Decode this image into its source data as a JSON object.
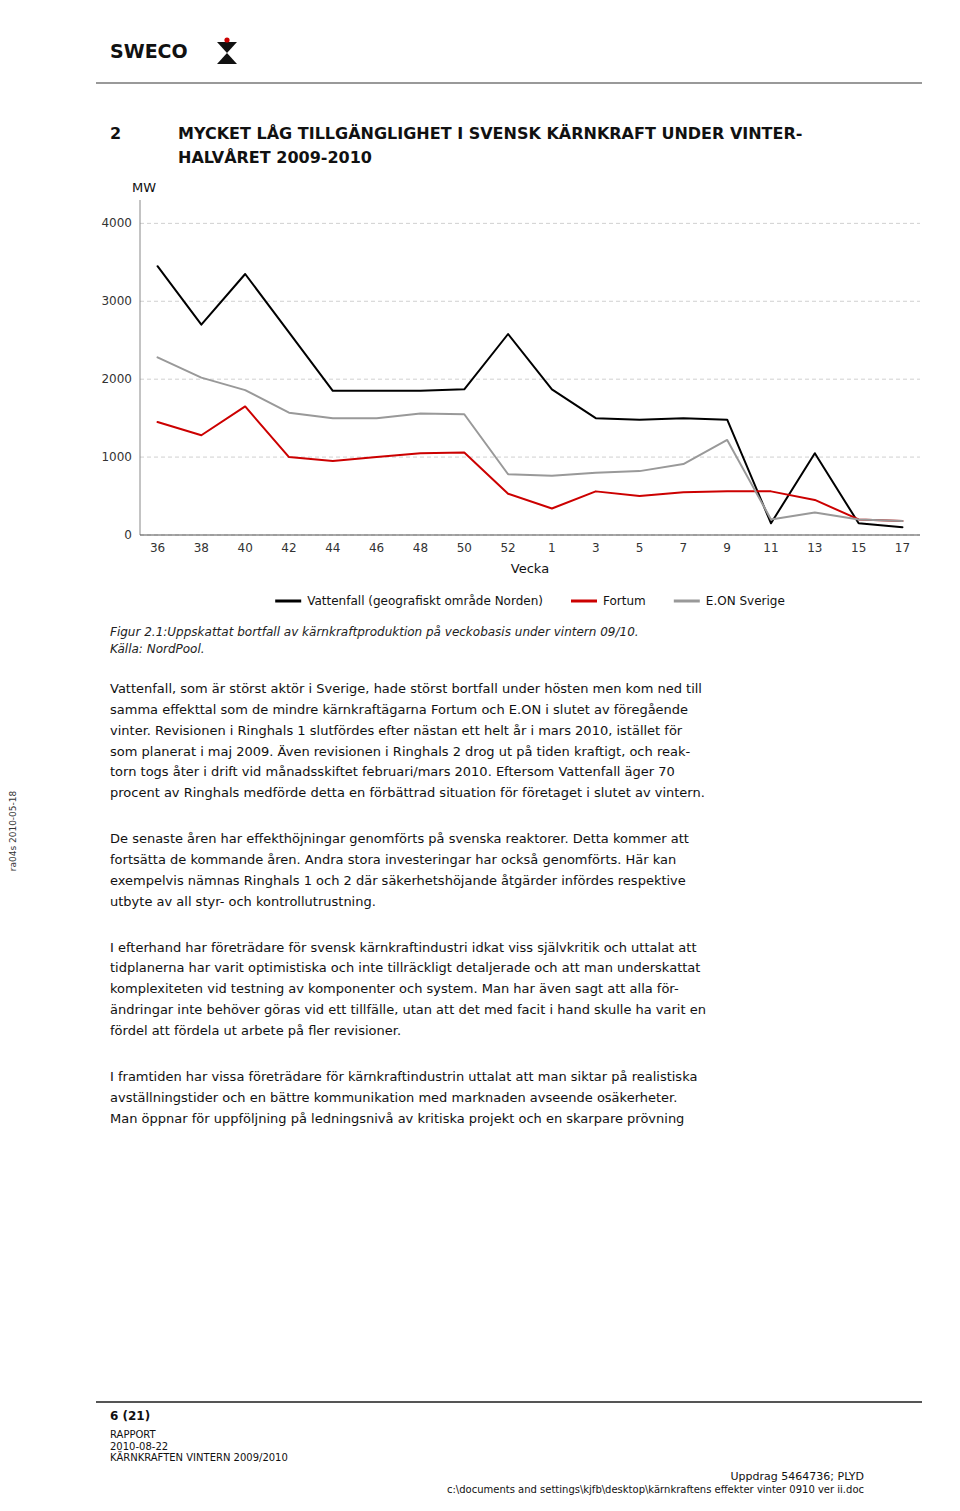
{
  "chart_data": {
    "type": "line",
    "xlabel": "Vecka",
    "ylabel": "MW",
    "categories": [
      "36",
      "38",
      "40",
      "42",
      "44",
      "46",
      "48",
      "50",
      "52",
      "1",
      "3",
      "5",
      "7",
      "9",
      "11",
      "13",
      "15",
      "17"
    ],
    "series": [
      {
        "name": "Vattenfall (geografiskt område Norden)",
        "color": "#000000",
        "values": [
          3450,
          2700,
          3350,
          2600,
          1850,
          1850,
          1850,
          1870,
          2580,
          1870,
          1500,
          1480,
          1500,
          1480,
          150,
          1050,
          150,
          100
        ]
      },
      {
        "name": "Fortum",
        "color": "#cc0000",
        "values": [
          1450,
          1280,
          1650,
          1000,
          950,
          1000,
          1050,
          1060,
          530,
          340,
          560,
          500,
          550,
          560,
          560,
          450,
          200,
          180
        ]
      },
      {
        "name": "E.ON Sverige",
        "color": "#999999",
        "values": [
          2280,
          2020,
          1860,
          1570,
          1500,
          1500,
          1560,
          1550,
          780,
          760,
          800,
          820,
          910,
          1220,
          200,
          290,
          200,
          180
        ]
      }
    ],
    "ylim": [
      0,
      4300
    ],
    "yticks": [
      0,
      1000,
      2000,
      3000,
      4000
    ],
    "grid": true,
    "legend": "bottom"
  },
  "document": {
    "logo": "SWECO",
    "heading_number": "2",
    "heading_lines": [
      "MYCKET LÅG TILLGÄNGLIGHET I SVENSK KÄRNKRAFT UNDER VINTER-",
      "HALVÅRET 2009-2010"
    ],
    "caption_lines": [
      "Figur 2.1:Uppskattat bortfall av kärnkraftproduktion på veckobasis under vintern 09/10.",
      "Källa: NordPool."
    ],
    "body_paragraphs": [
      [
        "Vattenfall, som är störst aktör i Sverige, hade störst bortfall under hösten men kom ned till",
        "samma effekttal som de mindre kärnkraftägarna Fortum och E.ON i slutet av föregående",
        "vinter. Revisionen i Ringhals 1 slutfördes efter nästan ett helt år i mars 2010, istället för",
        "som planerat i maj 2009. Även revisionen i Ringhals 2 drog ut på tiden kraftigt, och reak-",
        "torn togs åter i drift vid månadsskiftet februari/mars 2010. Eftersom Vattenfall äger 70",
        "procent av Ringhals medförde detta en förbättrad situation för företaget i slutet av vintern."
      ],
      [
        "De senaste åren har effekthöjningar genomförts på svenska reaktorer. Detta kommer att",
        "fortsätta de kommande åren. Andra stora investeringar har också genomförts. Här kan",
        "exempelvis nämnas Ringhals 1 och 2 där säkerhetshöjande åtgärder infördes respektive",
        "utbyte av all styr- och kontrollutrustning."
      ],
      [
        "I efterhand har företrädare för svensk kärnkraftindustri idkat viss självkritik och uttalat att",
        "tidplanerna har varit optimistiska och inte tillräckligt detaljerade och att man underskattat",
        "komplexiteten vid testning av komponenter och system. Man har även sagt att alla för-",
        "ändringar inte behöver göras vid ett tillfälle, utan att det med facit i hand skulle ha varit en",
        "fördel att fördela ut arbete på fler revisioner."
      ],
      [
        "I framtiden har vissa företrädare för kärnkraftindustrin uttalat att man siktar på realistiska",
        "avställningstider och en bättre kommunikation med marknaden avseende osäkerheter.",
        "Man öppnar för uppföljning på ledningsnivå av kritiska projekt och en skarpare prövning"
      ]
    ],
    "footer_page": "6 (21)",
    "footer_lines": [
      "RAPPORT",
      "2010-08-22",
      "KÄRNKRAFTEN VINTERN 2009/2010"
    ],
    "footer_right_lines": [
      "Uppdrag 5464736; PLYD",
      "c:\\documents and settings\\kjfb\\desktop\\kärnkraftens effekter vinter 0910 ver ii.doc"
    ],
    "sidebar": "ra04s 2010-05-18"
  }
}
